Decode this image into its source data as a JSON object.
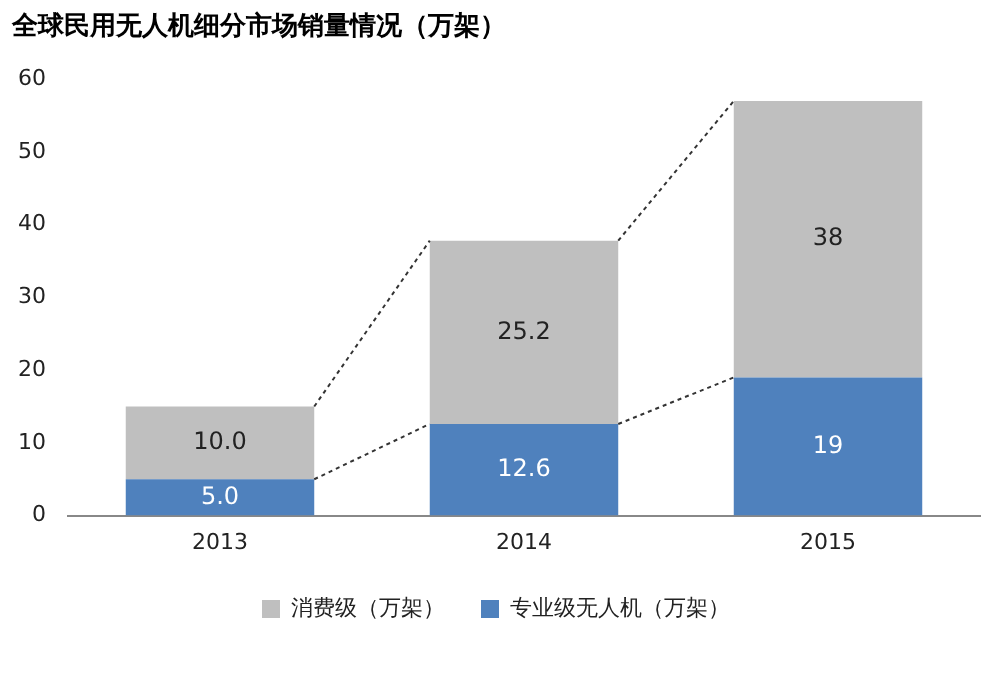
{
  "chart_data": {
    "type": "bar",
    "title": "全球民用无人机细分市场销量情况（万架）",
    "categories": [
      "2013",
      "2014",
      "2015"
    ],
    "stacked": true,
    "series": [
      {
        "name": "专业级无人机（万架）",
        "color": "#4f81bd",
        "values": [
          5.0,
          12.6,
          19
        ],
        "value_labels": [
          "5.0",
          "12.6",
          "19"
        ]
      },
      {
        "name": "消费级（万架）",
        "color": "#bfbfbf",
        "values": [
          10.0,
          25.2,
          38
        ],
        "value_labels": [
          "10.0",
          "25.2",
          "38"
        ]
      }
    ],
    "ylim": [
      0,
      60
    ],
    "yticks": [
      0,
      10,
      20,
      30,
      40,
      50,
      60
    ],
    "grid": false,
    "legend": "bottom"
  }
}
